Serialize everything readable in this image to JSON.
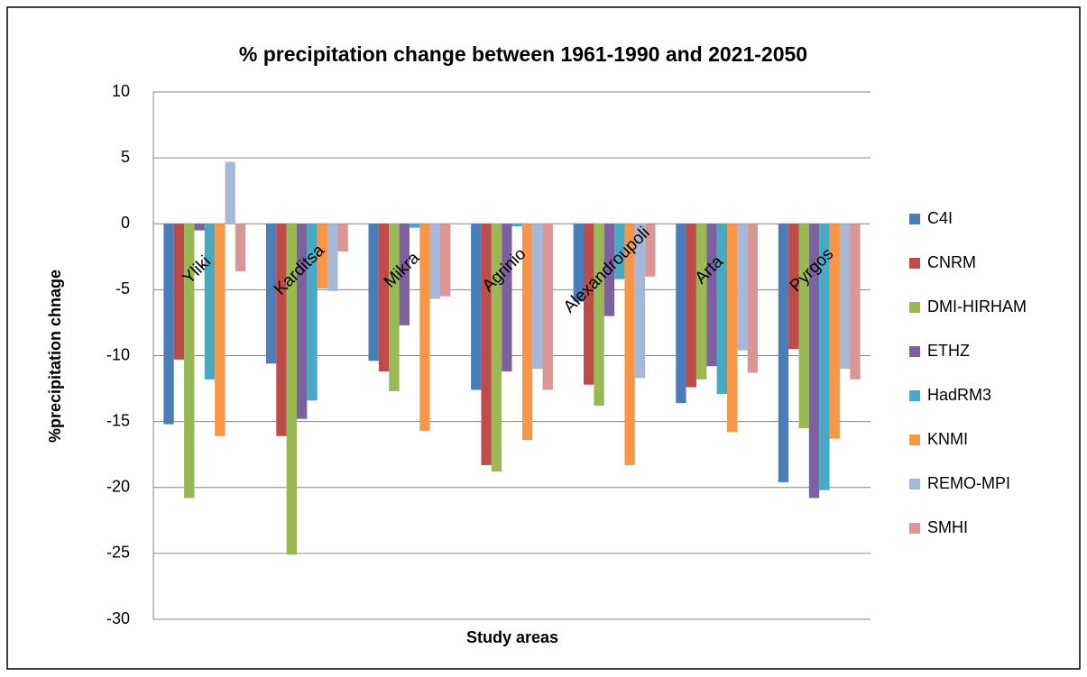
{
  "chart_data": {
    "type": "bar",
    "title": "% precipitation change between 1961-1990 and 2021-2050",
    "y_label": "%precipitation chnage",
    "x_label": "Study areas",
    "categories": [
      "Yliki",
      "Karditsa",
      "Mikra",
      "Agrinio",
      "Alexandroupoli",
      "Arta",
      "Pyrgos"
    ],
    "series": [
      {
        "name": "C4I",
        "color": "#4a7ebb",
        "values": [
          -15.2,
          -10.6,
          -10.4,
          -12.6,
          -5.9,
          -13.6,
          -19.6
        ]
      },
      {
        "name": "CNRM",
        "color": "#be4b48",
        "values": [
          -10.3,
          -16.1,
          -11.2,
          -18.3,
          -12.2,
          -12.4,
          -9.5
        ]
      },
      {
        "name": "DMI-HIRHAM",
        "color": "#98b954",
        "values": [
          -20.8,
          -25.1,
          -12.7,
          -18.8,
          -13.8,
          -11.8,
          -15.5
        ]
      },
      {
        "name": "ETHZ",
        "color": "#7d60a0",
        "values": [
          -0.5,
          -14.8,
          -7.7,
          -11.2,
          -7.0,
          -10.8,
          -20.8
        ]
      },
      {
        "name": "HadRM3",
        "color": "#46aac5",
        "values": [
          -11.8,
          -13.4,
          -0.3,
          -0.2,
          -4.2,
          -12.9,
          -20.2
        ]
      },
      {
        "name": "KNMI",
        "color": "#f79646",
        "values": [
          -16.1,
          -4.9,
          -15.7,
          -16.4,
          -18.3,
          -15.8,
          -16.3
        ]
      },
      {
        "name": "REMO-MPI",
        "color": "#a5b8d9",
        "values": [
          4.7,
          -5.1,
          -5.7,
          -11.0,
          -11.7,
          -9.6,
          -11.0
        ]
      },
      {
        "name": "SMHI",
        "color": "#d99694",
        "values": [
          -3.6,
          -2.1,
          -5.5,
          -12.6,
          -4.0,
          -11.3,
          -11.8
        ]
      }
    ],
    "ylim": [
      -30,
      10
    ],
    "yticks": [
      -30,
      -25,
      -20,
      -15,
      -10,
      -5,
      0,
      5,
      10
    ],
    "grid": true,
    "legend": "right"
  }
}
